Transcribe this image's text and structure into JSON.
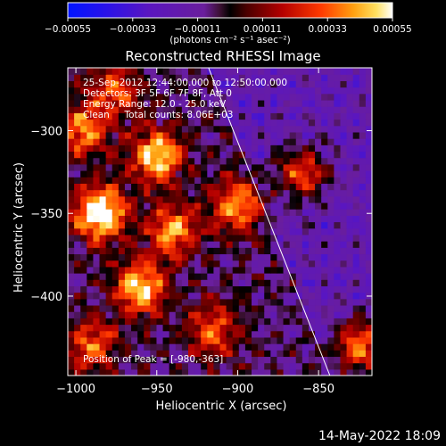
{
  "chart_data": {
    "type": "heatmap",
    "title": "Reconstructed RHESSI Image",
    "xlabel": "Heliocentric X (arcsec)",
    "ylabel": "Heliocentric Y (arcsec)",
    "xlim": [
      -1005,
      -817
    ],
    "ylim": [
      -448,
      -262
    ],
    "xticks": [
      -1000,
      -950,
      -900,
      -850
    ],
    "yticks": [
      -300,
      -350,
      -400
    ],
    "colorbar": {
      "label": "(photons cm⁻² s⁻¹ asec⁻²)",
      "range": [
        -0.00055,
        0.00055
      ],
      "ticks": [
        "-0.00055",
        "-0.00033",
        "-0.00011",
        "0.00011",
        "0.00033",
        "0.00055"
      ]
    },
    "limb_line": {
      "x": [
        -918,
        -843
      ],
      "y": [
        -262,
        -448
      ]
    },
    "peak": {
      "x": -980,
      "y": -363
    },
    "annotations": {
      "time": "25-Sep-2012 12:44:00.000 to 12:50:00.000",
      "detectors": "Detectors: 3F 5F 6F 7F 8F, Att 0",
      "energy": "Energy Range: 12.0 - 25.0 keV",
      "clean": "Clean     Total counts: 8.06E+03",
      "peak_text": "Position of Peak = [-980,-363]"
    },
    "hot_spots": [
      {
        "x": -985,
        "y": -350,
        "value": 0.00055
      },
      {
        "x": -950,
        "y": -315,
        "value": 0.0004
      },
      {
        "x": -960,
        "y": -395,
        "value": 0.0004
      },
      {
        "x": -900,
        "y": -345,
        "value": 0.00032
      },
      {
        "x": -940,
        "y": -360,
        "value": 0.0003
      },
      {
        "x": -995,
        "y": -300,
        "value": 0.00028
      },
      {
        "x": -860,
        "y": -325,
        "value": 0.0003
      },
      {
        "x": -825,
        "y": -430,
        "value": 0.00035
      },
      {
        "x": -915,
        "y": -420,
        "value": 0.00022
      },
      {
        "x": -990,
        "y": -430,
        "value": 0.00022
      },
      {
        "x": -975,
        "y": -275,
        "value": 0.00018
      }
    ],
    "background_level": -0.00018
  },
  "timestamp": "14-May-2022 18:09",
  "colors": {
    "background": "#000000",
    "text": "#ffffff",
    "limb": "#ffffff"
  }
}
